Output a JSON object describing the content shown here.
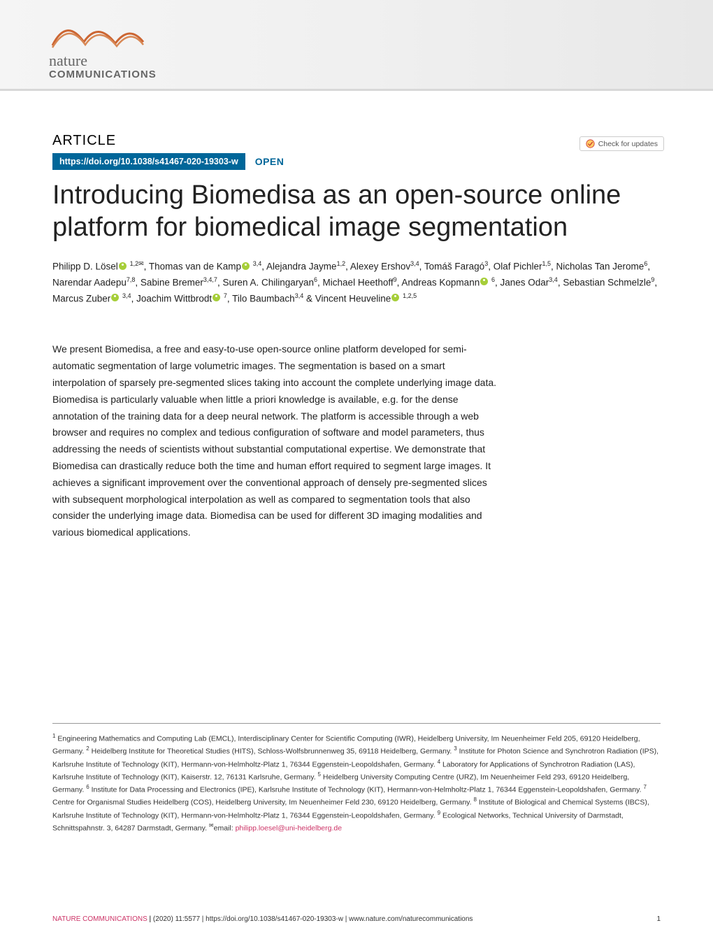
{
  "journal": {
    "logo_line1": "nature",
    "logo_line2": "COMMUNICATIONS",
    "swirl_color": "#cc6633",
    "header_gradient_from": "#f5f5f5",
    "header_gradient_to": "#e8e8e8"
  },
  "heading": {
    "article_label": "ARTICLE",
    "doi": "https://doi.org/10.1038/s41467-020-19303-w",
    "open_label": "OPEN",
    "check_updates_label": "Check for updates",
    "doi_badge_bg": "#006699",
    "doi_badge_fg": "#ffffff",
    "open_color": "#006699"
  },
  "title": "Introducing Biomedisa as an open-source online platform for biomedical image segmentation",
  "authors_html": "Philipp D. Lösel{orcid} <sup>1,2✉</sup>, Thomas van de Kamp{orcid} <sup>3,4</sup>, Alejandra Jayme<sup>1,2</sup>, Alexey Ershov<sup>3,4</sup>, Tomáš Faragó<sup>3</sup>, Olaf Pichler<sup>1,5</sup>, Nicholas Tan Jerome<sup>6</sup>, Narendar Aadepu<sup>7,8</sup>, Sabine Bremer<sup>3,4,7</sup>, Suren A. Chilingaryan<sup>6</sup>, Michael Heethoff<sup>9</sup>, Andreas Kopmann{orcid} <sup>6</sup>, Janes Odar<sup>3,4</sup>, Sebastian Schmelzle<sup>9</sup>, Marcus Zuber{orcid} <sup>3,4</sup>, Joachim Wittbrodt{orcid} <sup>7</sup>, Tilo Baumbach<sup>3,4</sup> & Vincent Heuveline{orcid} <sup>1,2,5</sup>",
  "abstract": "We present Biomedisa, a free and easy-to-use open-source online platform developed for semi-automatic segmentation of large volumetric images. The segmentation is based on a smart interpolation of sparsely pre-segmented slices taking into account the complete underlying image data. Biomedisa is particularly valuable when little a priori knowledge is available, e.g. for the dense annotation of the training data for a deep neural network. The platform is accessible through a web browser and requires no complex and tedious configuration of software and model parameters, thus addressing the needs of scientists without substantial computational expertise. We demonstrate that Biomedisa can drastically reduce both the time and human effort required to segment large images. It achieves a significant improvement over the conventional approach of densely pre-segmented slices with subsequent morphological interpolation as well as compared to segmentation tools that also consider the underlying image data. Biomedisa can be used for different 3D imaging modalities and various biomedical applications.",
  "affiliations": [
    "Engineering Mathematics and Computing Lab (EMCL), Interdisciplinary Center for Scientific Computing (IWR), Heidelberg University, Im Neuenheimer Feld 205, 69120 Heidelberg, Germany.",
    "Heidelberg Institute for Theoretical Studies (HITS), Schloss-Wolfsbrunnenweg 35, 69118 Heidelberg, Germany.",
    "Institute for Photon Science and Synchrotron Radiation (IPS), Karlsruhe Institute of Technology (KIT), Hermann-von-Helmholtz-Platz 1, 76344 Eggenstein-Leopoldshafen, Germany.",
    "Laboratory for Applications of Synchrotron Radiation (LAS), Karlsruhe Institute of Technology (KIT), Kaiserstr. 12, 76131 Karlsruhe, Germany.",
    "Heidelberg University Computing Centre (URZ), Im Neuenheimer Feld 293, 69120 Heidelberg, Germany.",
    "Institute for Data Processing and Electronics (IPE), Karlsruhe Institute of Technology (KIT), Hermann-von-Helmholtz-Platz 1, 76344 Eggenstein-Leopoldshafen, Germany.",
    "Centre for Organismal Studies Heidelberg (COS), Heidelberg University, Im Neuenheimer Feld 230, 69120 Heidelberg, Germany.",
    "Institute of Biological and Chemical Systems (IBCS), Karlsruhe Institute of Technology (KIT), Hermann-von-Helmholtz-Platz 1, 76344 Eggenstein-Leopoldshafen, Germany.",
    "Ecological Networks, Technical University of Darmstadt, Schnittspahnstr. 3, 64287 Darmstadt, Germany."
  ],
  "corresponding": {
    "label": "email:",
    "email": "philipp.loesel@uni-heidelberg.de",
    "email_color": "#cc3366"
  },
  "footer": {
    "journal": "NATURE COMMUNICATIONS",
    "citation": "(2020) 11:5577 | https://doi.org/10.1038/s41467-020-19303-w | www.nature.com/naturecommunications",
    "page": "1",
    "journal_color": "#cc3366"
  },
  "orcid_bg": "#a6ce39"
}
